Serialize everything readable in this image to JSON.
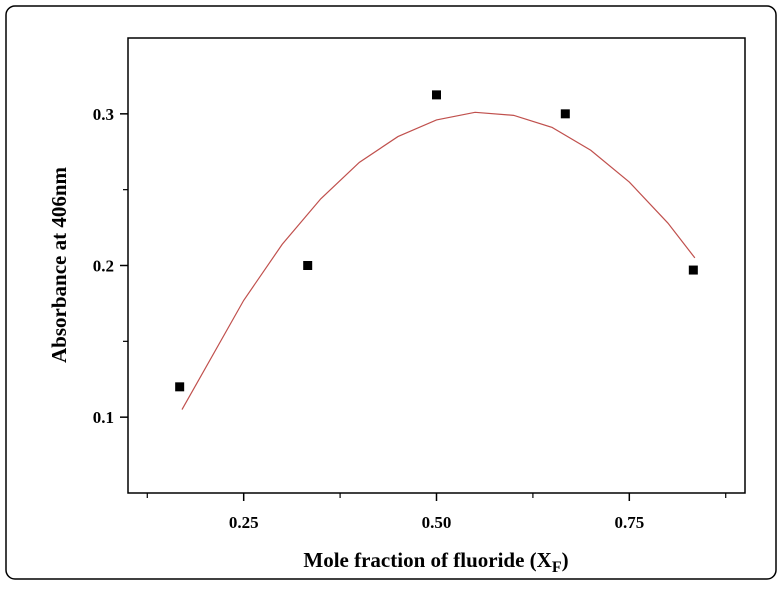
{
  "chart_data": {
    "type": "scatter",
    "xlabel": {
      "text": "Mole fraction of fluoride (X",
      "subscript": "F",
      "suffix": ")"
    },
    "ylabel": "Absorbance at 406nm",
    "xlim": [
      0.1,
      0.9
    ],
    "ylim": [
      0.05,
      0.35
    ],
    "xticks": [
      {
        "value": 0.25,
        "label": "0.25"
      },
      {
        "value": 0.5,
        "label": "0.50"
      },
      {
        "value": 0.75,
        "label": "0.75"
      }
    ],
    "xminorticks": [
      0.125,
      0.375,
      0.625,
      0.875
    ],
    "yticks": [
      0.1,
      0.2,
      0.3
    ],
    "yminorticks": [
      0.15,
      0.25
    ],
    "series": [
      {
        "type": "scatter",
        "color": "#000000",
        "x": [
          0.167,
          0.333,
          0.5,
          0.667,
          0.833
        ],
        "values": [
          0.12,
          0.2,
          0.3125,
          0.3,
          0.197
        ]
      },
      {
        "type": "line",
        "color": "#c0504d",
        "x": [
          0.17,
          0.25,
          0.3,
          0.35,
          0.4,
          0.45,
          0.5,
          0.55,
          0.6,
          0.65,
          0.7,
          0.75,
          0.8,
          0.835
        ],
        "values": [
          0.105,
          0.177,
          0.214,
          0.244,
          0.268,
          0.285,
          0.296,
          0.301,
          0.299,
          0.291,
          0.276,
          0.255,
          0.228,
          0.205
        ]
      }
    ]
  }
}
